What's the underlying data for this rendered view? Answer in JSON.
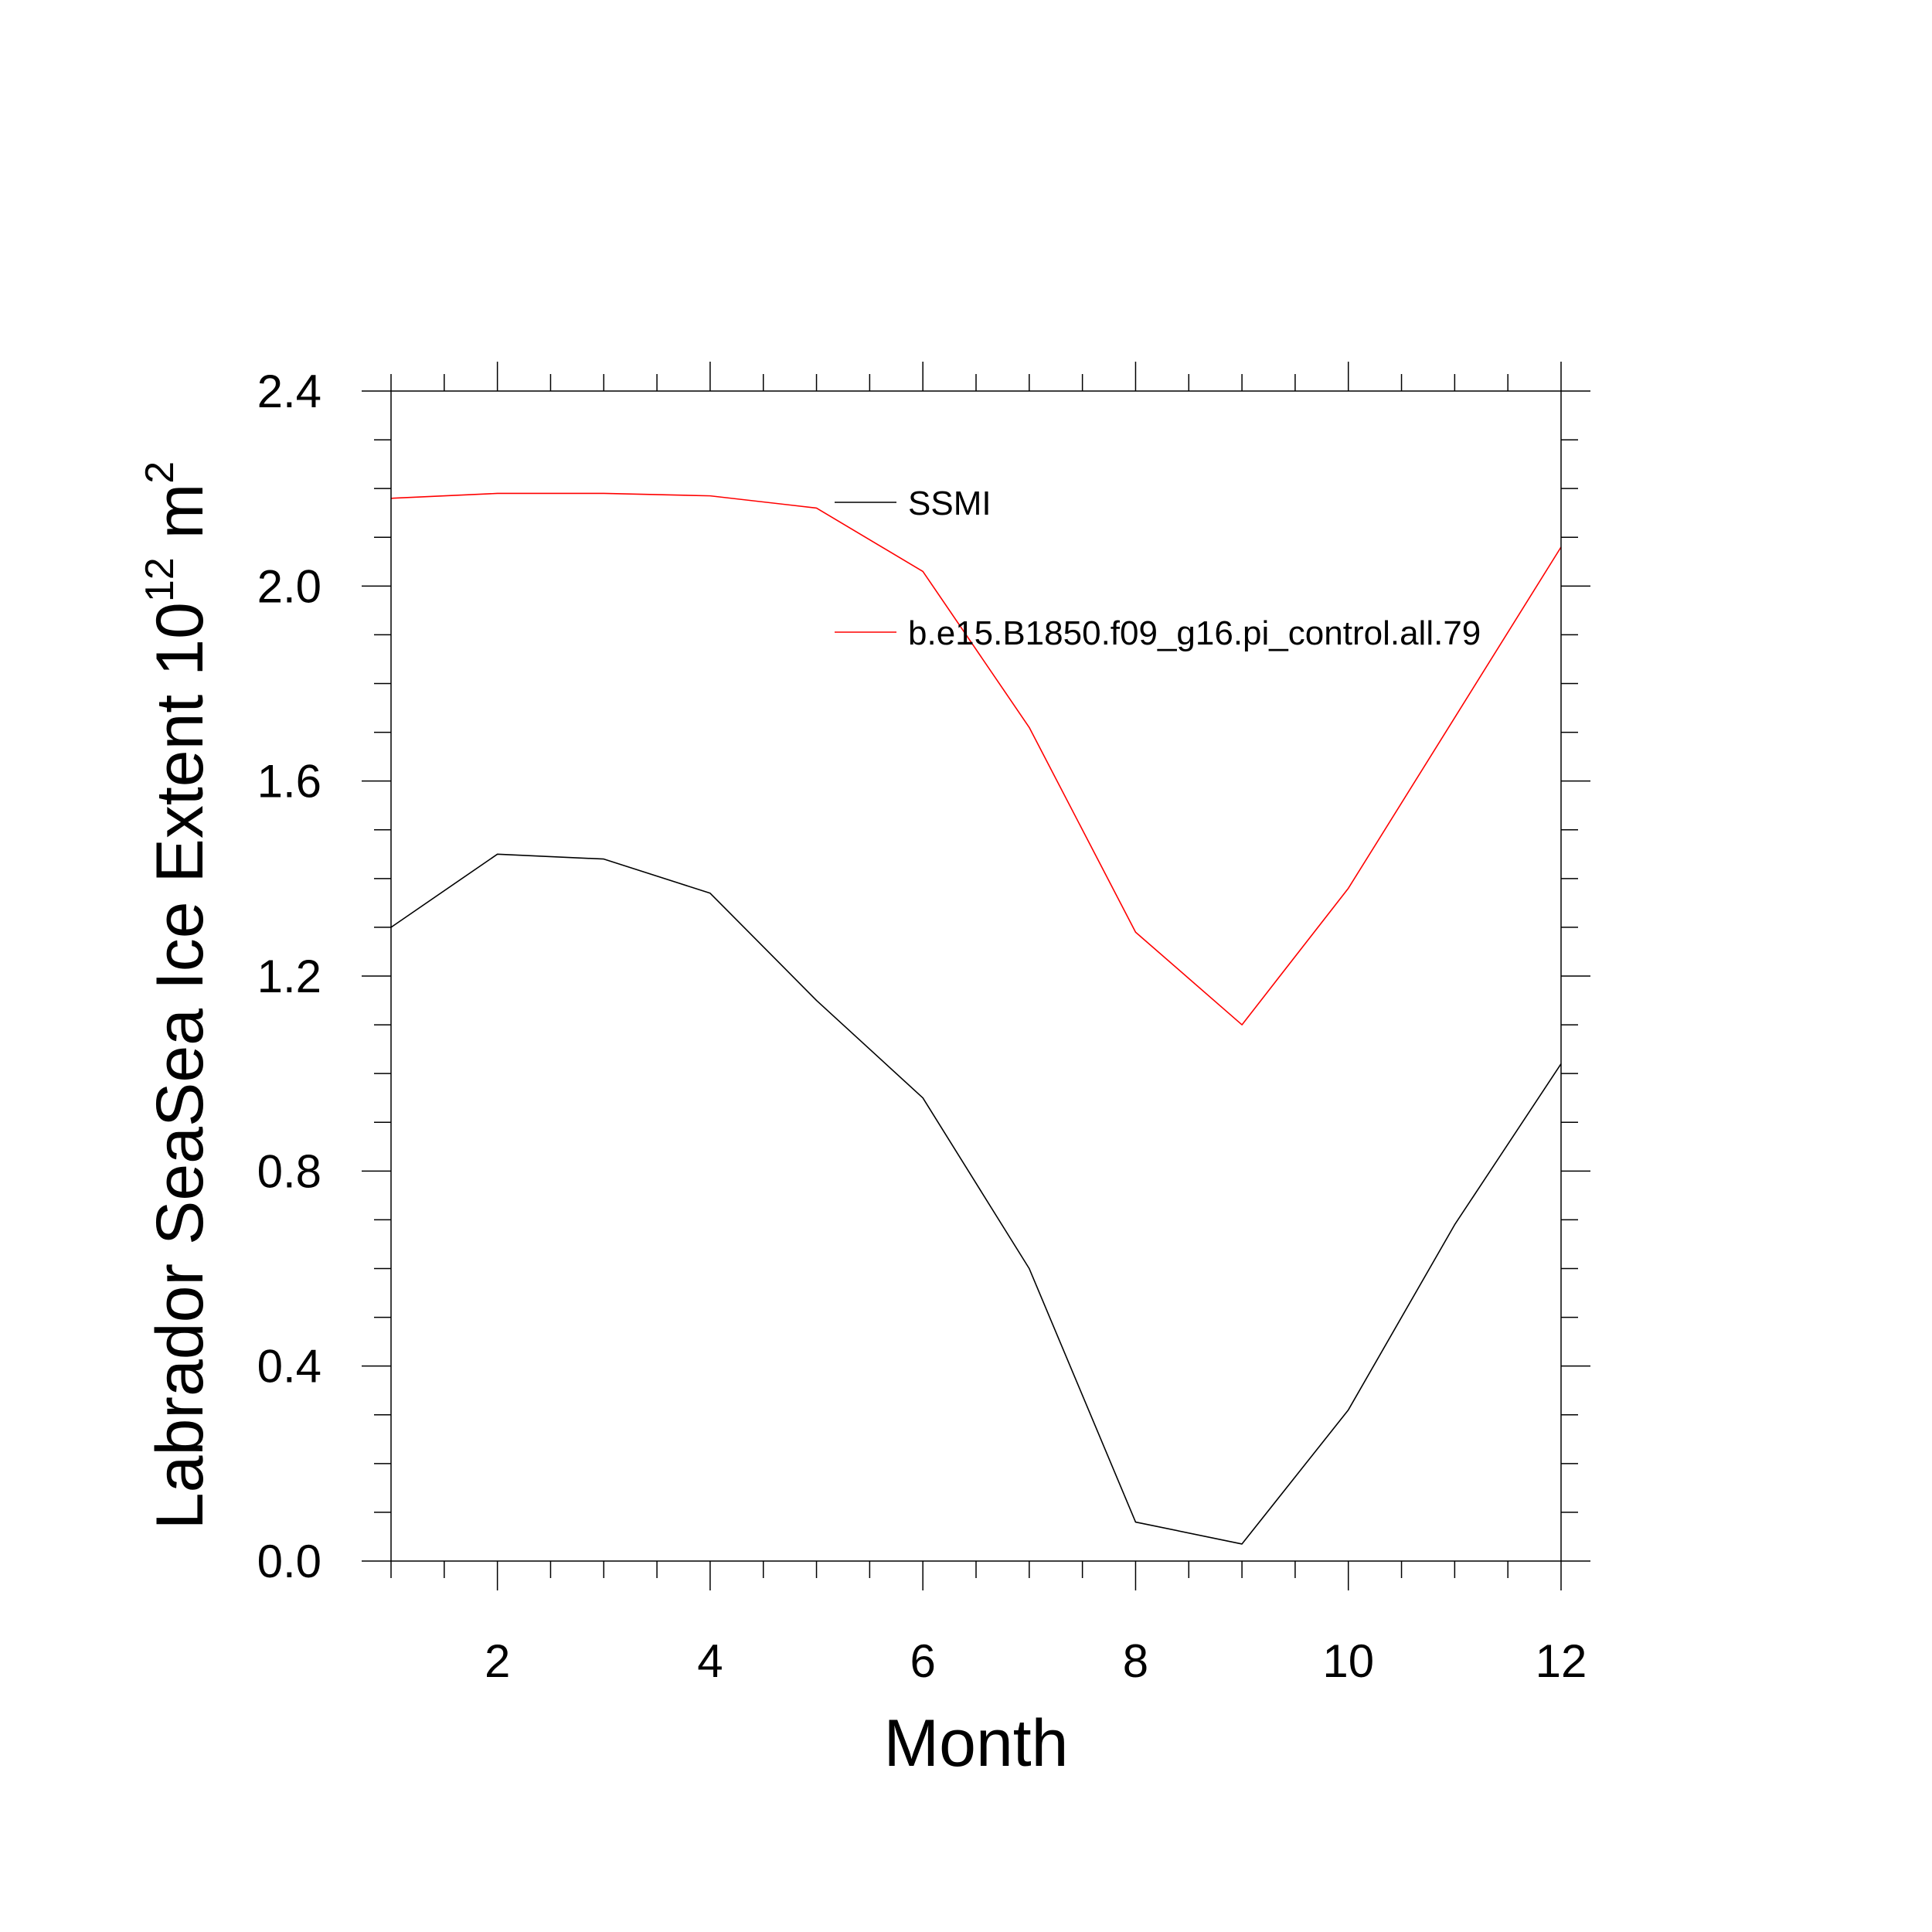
{
  "chart_data": {
    "type": "line",
    "xlabel": "Month",
    "ylabel": {
      "text": "Labrador SeaSea Ice Extent 10",
      "exponent1": "12",
      "unit": " m",
      "exponent2": "2"
    },
    "xlim": [
      1,
      12
    ],
    "ylim": [
      0,
      2.4
    ],
    "x_ticks": [
      "2",
      "4",
      "6",
      "8",
      "10",
      "12"
    ],
    "y_ticks": [
      "0.0",
      "0.4",
      "0.8",
      "1.2",
      "1.6",
      "2.0",
      "2.4"
    ],
    "grid": false,
    "legend_placement": "top-right",
    "x": [
      1,
      2,
      3,
      4,
      5,
      6,
      7,
      8,
      9,
      10,
      11,
      12
    ],
    "series": [
      {
        "name": "SSMI",
        "color": "#000000",
        "values": [
          1.3,
          1.45,
          1.44,
          1.37,
          1.15,
          0.95,
          0.6,
          0.08,
          0.035,
          0.31,
          0.69,
          1.02
        ]
      },
      {
        "name": "b.e15.B1850.f09_g16.pi_control.all.79",
        "color": "#ff0000",
        "values": [
          2.18,
          2.19,
          2.19,
          2.185,
          2.16,
          2.03,
          1.71,
          1.29,
          1.1,
          1.38,
          1.73,
          2.08
        ]
      }
    ]
  }
}
